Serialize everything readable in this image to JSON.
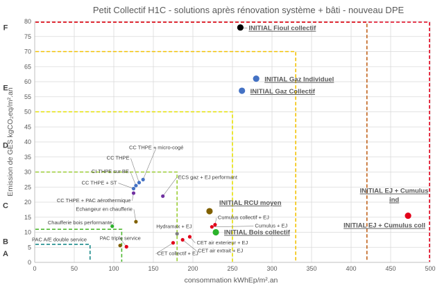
{
  "chart_data": {
    "type": "scatter",
    "title": "Petit Collectif H1C - solutions après rénovation système + bâti - nouveau DPE",
    "xlabel": "consommation kWhEp/m².an",
    "ylabel": "Emission de GES kgCO₂eq/m².an",
    "xlim": [
      0,
      500
    ],
    "ylim": [
      0,
      80
    ],
    "x_ticks": [
      "0",
      "50",
      "100",
      "150",
      "200",
      "250",
      "300",
      "350",
      "400",
      "450",
      "500"
    ],
    "y_ticks": [
      "0",
      "5",
      "10",
      "15",
      "20",
      "25",
      "30",
      "35",
      "40",
      "45",
      "50",
      "55",
      "60",
      "65",
      "70",
      "75",
      "80"
    ],
    "grid": true,
    "classes": [
      {
        "letter": "A",
        "x_max": 70,
        "y_max": 6,
        "color": "#1a8a8a"
      },
      {
        "letter": "B",
        "x_max": 110,
        "y_max": 11,
        "color": "#4db82f"
      },
      {
        "letter": "C",
        "x_max": 180,
        "y_max": 30,
        "color": "#9acd32"
      },
      {
        "letter": "D",
        "x_max": 250,
        "y_max": 50,
        "color": "#e6e000"
      },
      {
        "letter": "E",
        "x_max": 330,
        "y_max": 70,
        "color": "#f2c200"
      },
      {
        "letter": "F",
        "x_max": 420,
        "y_max": 100,
        "color": "#c0621a"
      },
      {
        "letter": "G",
        "x_max": 500,
        "y_max": 100,
        "color": "#e2001a"
      }
    ],
    "class_letter_labels": [
      {
        "letter": "F",
        "y": 78
      },
      {
        "letter": "E",
        "y": 58
      },
      {
        "letter": "D",
        "y": 39
      },
      {
        "letter": "C",
        "y": 19
      },
      {
        "letter": "B",
        "y": 7
      },
      {
        "letter": "A",
        "y": 3
      }
    ],
    "points": [
      {
        "name": "INITIAL Fioul collectif",
        "x": 260,
        "y": 78,
        "color": "#000000",
        "size": "large",
        "label": "INITIAL Fioul collectif",
        "label_style": "big"
      },
      {
        "name": "INITIAL Gaz Individuel",
        "x": 280,
        "y": 61,
        "color": "#4472c4",
        "size": "large",
        "label": "INITIAL Gaz Individuel",
        "label_style": "big"
      },
      {
        "name": "INITIAL Gaz Collectif",
        "x": 262,
        "y": 57,
        "color": "#4472c4",
        "size": "large",
        "label": "INITIAL Gaz Collectif",
        "label_style": "big"
      },
      {
        "name": "INITIAL RCU moyen",
        "x": 221,
        "y": 17,
        "color": "#806000",
        "size": "large",
        "label": "INITIAL RCU moyen",
        "label_style": "big"
      },
      {
        "name": "INITIAL Bois collectif",
        "x": 229,
        "y": 10,
        "color": "#2bb32b",
        "size": "large",
        "label": "INITIAL Bois collectif",
        "label_style": "big"
      },
      {
        "name": "INITIAL EJ + Cumulus ind",
        "x": 472,
        "y": 15.5,
        "color": "#e2001a",
        "size": "large",
        "label": "INITIAL EJ + Cumulus ind",
        "label_style": "big"
      },
      {
        "name": "CC THPE + micro-cogé",
        "x": 137,
        "y": 27.5,
        "color": "#4472c4",
        "size": "small",
        "label": "CC THPE + micro-cogé",
        "label_style": "small"
      },
      {
        "name": "CC THPE",
        "x": 132,
        "y": 26.5,
        "color": "#4472c4",
        "size": "small",
        "label": "CC THPE",
        "label_style": "small"
      },
      {
        "name": "CI THPE sur BE",
        "x": 128,
        "y": 25.5,
        "color": "#4472c4",
        "size": "small",
        "label": "CI THPE sur BE",
        "label_style": "small"
      },
      {
        "name": "CC THPE + ST",
        "x": 125,
        "y": 24.5,
        "color": "#4472c4",
        "size": "small",
        "label": "CC THPE + ST",
        "label_style": "small"
      },
      {
        "name": "CC THPE + PAC aérothermique",
        "x": 125,
        "y": 23,
        "color": "#7030a0",
        "size": "small",
        "label": "CC THPE + PAC aérothermique",
        "label_style": "small"
      },
      {
        "name": "ECS gaz + EJ performant",
        "x": 162,
        "y": 22,
        "color": "#7030a0",
        "size": "small",
        "label": "ECS gaz + EJ performant",
        "label_style": "small"
      },
      {
        "name": "Echangeur en chaufferie",
        "x": 128,
        "y": 13.5,
        "color": "#806000",
        "size": "small",
        "label": "Echangeur en chaufferie",
        "label_style": "small"
      },
      {
        "name": "Chaufferie bois performante",
        "x": 98,
        "y": 12,
        "color": "#2bb32b",
        "size": "small",
        "label": "Chaufferie bois performante",
        "label_style": "small"
      },
      {
        "name": "Hydramax + EJ",
        "x": 180,
        "y": 9.5,
        "color": "#808080",
        "size": "small",
        "label": "Hydramax + EJ",
        "label_style": "small"
      },
      {
        "name": "Cumulus collectif + EJ",
        "x": 228,
        "y": 12.5,
        "color": "#e2001a",
        "size": "small",
        "label": "Cumulus collectif + EJ",
        "label_style": "small"
      },
      {
        "name": "Cumulus + EJ",
        "x": 224,
        "y": 11.8,
        "color": "#e2001a",
        "size": "small",
        "label": "Cumulus + EJ",
        "label_style": "small"
      },
      {
        "name": "CET air exterieur + EJ",
        "x": 196,
        "y": 8.5,
        "color": "#e2001a",
        "size": "small",
        "label": "CET air exterieur + EJ",
        "label_style": "small"
      },
      {
        "name": "CET air extrait + EJ",
        "x": 187,
        "y": 7.5,
        "color": "#e2001a",
        "size": "small",
        "label": "CET air extrait + EJ",
        "label_style": "small"
      },
      {
        "name": "CET collectif + EJ",
        "x": 175,
        "y": 6.5,
        "color": "#e2001a",
        "size": "small",
        "label": "CET collectif + EJ",
        "label_style": "small"
      },
      {
        "name": "PAC triple service",
        "x": 116,
        "y": 5.2,
        "color": "#e2001a",
        "size": "small",
        "label": "PAC triple service",
        "label_style": "small"
      },
      {
        "name": "PAC A/E double service",
        "x": 108,
        "y": 5.6,
        "color": "#806000",
        "size": "small",
        "label": "PAC A/E double service",
        "label_style": "small"
      }
    ],
    "extra_labels": [
      {
        "text": "INITIAL EJ + Cumulus coll",
        "style": "big"
      }
    ]
  }
}
